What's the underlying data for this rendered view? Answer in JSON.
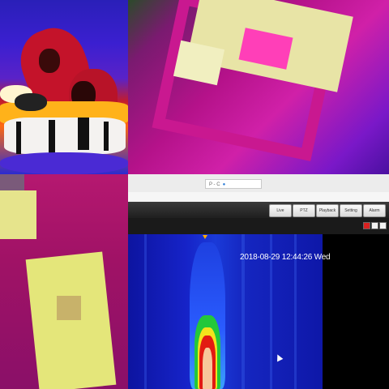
{
  "browser": {
    "address_text": "P - C",
    "tab_icon": "globe-icon"
  },
  "nav": {
    "tabs": [
      "Live",
      "PTZ",
      "Playback",
      "Setting",
      "Alarm"
    ],
    "active_tab": "Live"
  },
  "toolbar": {
    "icons": [
      "alarm-icon",
      "window-icon",
      "split-icon",
      "fullscreen-icon"
    ]
  },
  "video": {
    "timestamp": "2018-08-29 12:44:26 Wed"
  },
  "colors": {
    "thermal_hot": "#e21a12",
    "thermal_cold": "#1623c8",
    "navbar": "#2a2a2a"
  }
}
